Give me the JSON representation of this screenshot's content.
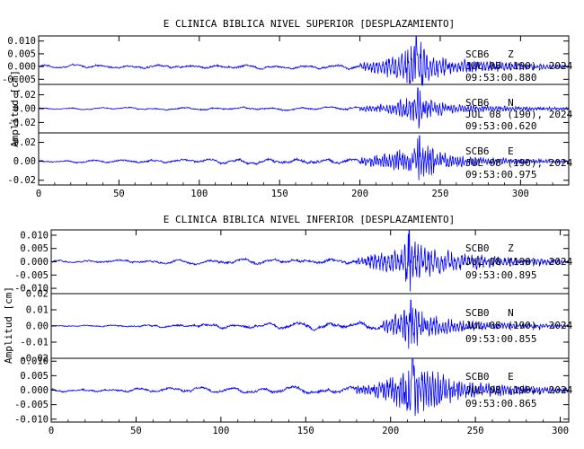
{
  "chart_data": [
    {
      "type": "line",
      "title": "E CLINICA BIBLICA NIVEL SUPERIOR [DESPLAZAMIENTO]",
      "ylabel": "Amplitud [cm]",
      "xlim": [
        0,
        330
      ],
      "xticks": [
        0,
        50,
        100,
        150,
        200,
        250,
        300
      ],
      "traces": [
        {
          "station": "SCB6",
          "component": "Z",
          "date": "JUL 08 (190), 2024",
          "time": "09:53:00.880",
          "ylim": [
            -0.007,
            0.012
          ],
          "yticks": [
            0.01,
            0.005,
            0.0,
            -0.005
          ],
          "yticklabels": [
            "0.010",
            "0.005",
            "0.000",
            "-0.005"
          ],
          "noise_amplitude": 0.0008,
          "arrival_s": 200,
          "peak_time_s": 235,
          "peak_amplitude": 0.012,
          "coda_end_s": 330,
          "envelope": [
            [
              0,
              0.0008
            ],
            [
              200,
              0.0012
            ],
            [
              215,
              0.004
            ],
            [
              230,
              0.007
            ],
            [
              235,
              0.012
            ],
            [
              245,
              0.005
            ],
            [
              260,
              0.003
            ],
            [
              280,
              0.0025
            ],
            [
              300,
              0.0015
            ],
            [
              330,
              0.0008
            ]
          ]
        },
        {
          "station": "SCB6",
          "component": "N",
          "date": "JUL 08 (190), 2024",
          "time": "09:53:00.620",
          "ylim": [
            -0.035,
            0.035
          ],
          "yticks": [
            0.02,
            0.0,
            -0.02
          ],
          "yticklabels": [
            "0.02",
            "0.00",
            "-0.02"
          ],
          "noise_amplitude": 0.0015,
          "arrival_s": 200,
          "peak_time_s": 236,
          "peak_amplitude": 0.03,
          "coda_end_s": 330,
          "envelope": [
            [
              0,
              0.0015
            ],
            [
              200,
              0.003
            ],
            [
              220,
              0.01
            ],
            [
              232,
              0.02
            ],
            [
              236,
              0.03
            ],
            [
              245,
              0.012
            ],
            [
              260,
              0.006
            ],
            [
              290,
              0.004
            ],
            [
              330,
              0.002
            ]
          ]
        },
        {
          "station": "SCB6",
          "component": "E",
          "date": "JUL 08 (190), 2024",
          "time": "09:53:00.975",
          "ylim": [
            -0.025,
            0.03
          ],
          "yticks": [
            0.02,
            0.0,
            -0.02
          ],
          "yticklabels": [
            "0.02",
            "0.00",
            "-0.02"
          ],
          "noise_amplitude": 0.0015,
          "arrival_s": 200,
          "peak_time_s": 237,
          "peak_amplitude": 0.027,
          "coda_end_s": 330,
          "envelope": [
            [
              0,
              0.0015
            ],
            [
              200,
              0.004
            ],
            [
              220,
              0.01
            ],
            [
              232,
              0.018
            ],
            [
              237,
              0.027
            ],
            [
              248,
              0.012
            ],
            [
              265,
              0.006
            ],
            [
              300,
              0.003
            ],
            [
              330,
              0.002
            ]
          ]
        }
      ]
    },
    {
      "type": "line",
      "title": "E CLINICA BIBLICA NIVEL INFERIOR [DESPLAZAMIENTO]",
      "ylabel": "Amplitud [cm]",
      "xlim": [
        0,
        305
      ],
      "xticks": [
        0,
        50,
        100,
        150,
        200,
        250,
        300
      ],
      "traces": [
        {
          "station": "SCB0",
          "component": "Z",
          "date": "JUL 08 (190), 2024",
          "time": "09:53:00.895",
          "ylim": [
            -0.012,
            0.012
          ],
          "yticks": [
            0.01,
            0.005,
            0.0,
            -0.005,
            -0.01
          ],
          "yticklabels": [
            "0.010",
            "0.005",
            "0.000",
            "-0.005",
            "-0.010"
          ],
          "noise_amplitude": 0.0007,
          "arrival_s": 180,
          "peak_time_s": 211,
          "peak_amplitude": 0.012,
          "coda_end_s": 305,
          "envelope": [
            [
              0,
              0.0007
            ],
            [
              180,
              0.0015
            ],
            [
              195,
              0.004
            ],
            [
              205,
              0.006
            ],
            [
              211,
              0.012
            ],
            [
              220,
              0.006
            ],
            [
              240,
              0.004
            ],
            [
              265,
              0.002
            ],
            [
              305,
              0.0008
            ]
          ]
        },
        {
          "station": "SCB0",
          "component": "N",
          "date": "JUL 08 (190), 2024",
          "time": "09:53:00.855",
          "ylim": [
            -0.02,
            0.02
          ],
          "yticks": [
            0.02,
            0.01,
            0.0,
            -0.01,
            -0.02
          ],
          "yticklabels": [
            "0.02",
            "0.01",
            "0.00",
            "-0.01",
            "-0.02"
          ],
          "noise_amplitude": 0.0006,
          "arrival_s": 195,
          "peak_time_s": 212,
          "peak_amplitude": 0.016,
          "coda_end_s": 305,
          "envelope": [
            [
              0,
              0.0006
            ],
            [
              195,
              0.003
            ],
            [
              205,
              0.009
            ],
            [
              212,
              0.016
            ],
            [
              222,
              0.008
            ],
            [
              240,
              0.004
            ],
            [
              270,
              0.002
            ],
            [
              305,
              0.001
            ]
          ]
        },
        {
          "station": "SCB0",
          "component": "E",
          "date": "JUL 08 (190), 2024",
          "time": "09:53:00.865",
          "ylim": [
            -0.011,
            0.011
          ],
          "yticks": [
            0.01,
            0.005,
            0.0,
            -0.005,
            -0.01
          ],
          "yticklabels": [
            "0.010",
            "0.005",
            "0.000",
            "-0.005",
            "-0.010"
          ],
          "noise_amplitude": 0.0007,
          "arrival_s": 180,
          "peak_time_s": 213,
          "peak_amplitude": 0.011,
          "coda_end_s": 305,
          "envelope": [
            [
              0,
              0.0007
            ],
            [
              180,
              0.0015
            ],
            [
              200,
              0.005
            ],
            [
              210,
              0.009
            ],
            [
              213,
              0.011
            ],
            [
              225,
              0.007
            ],
            [
              245,
              0.003
            ],
            [
              270,
              0.002
            ],
            [
              305,
              0.0008
            ]
          ]
        }
      ]
    }
  ],
  "colors": {
    "trace": "#0000ff",
    "frame": "#000000",
    "background": "#ffffff"
  }
}
